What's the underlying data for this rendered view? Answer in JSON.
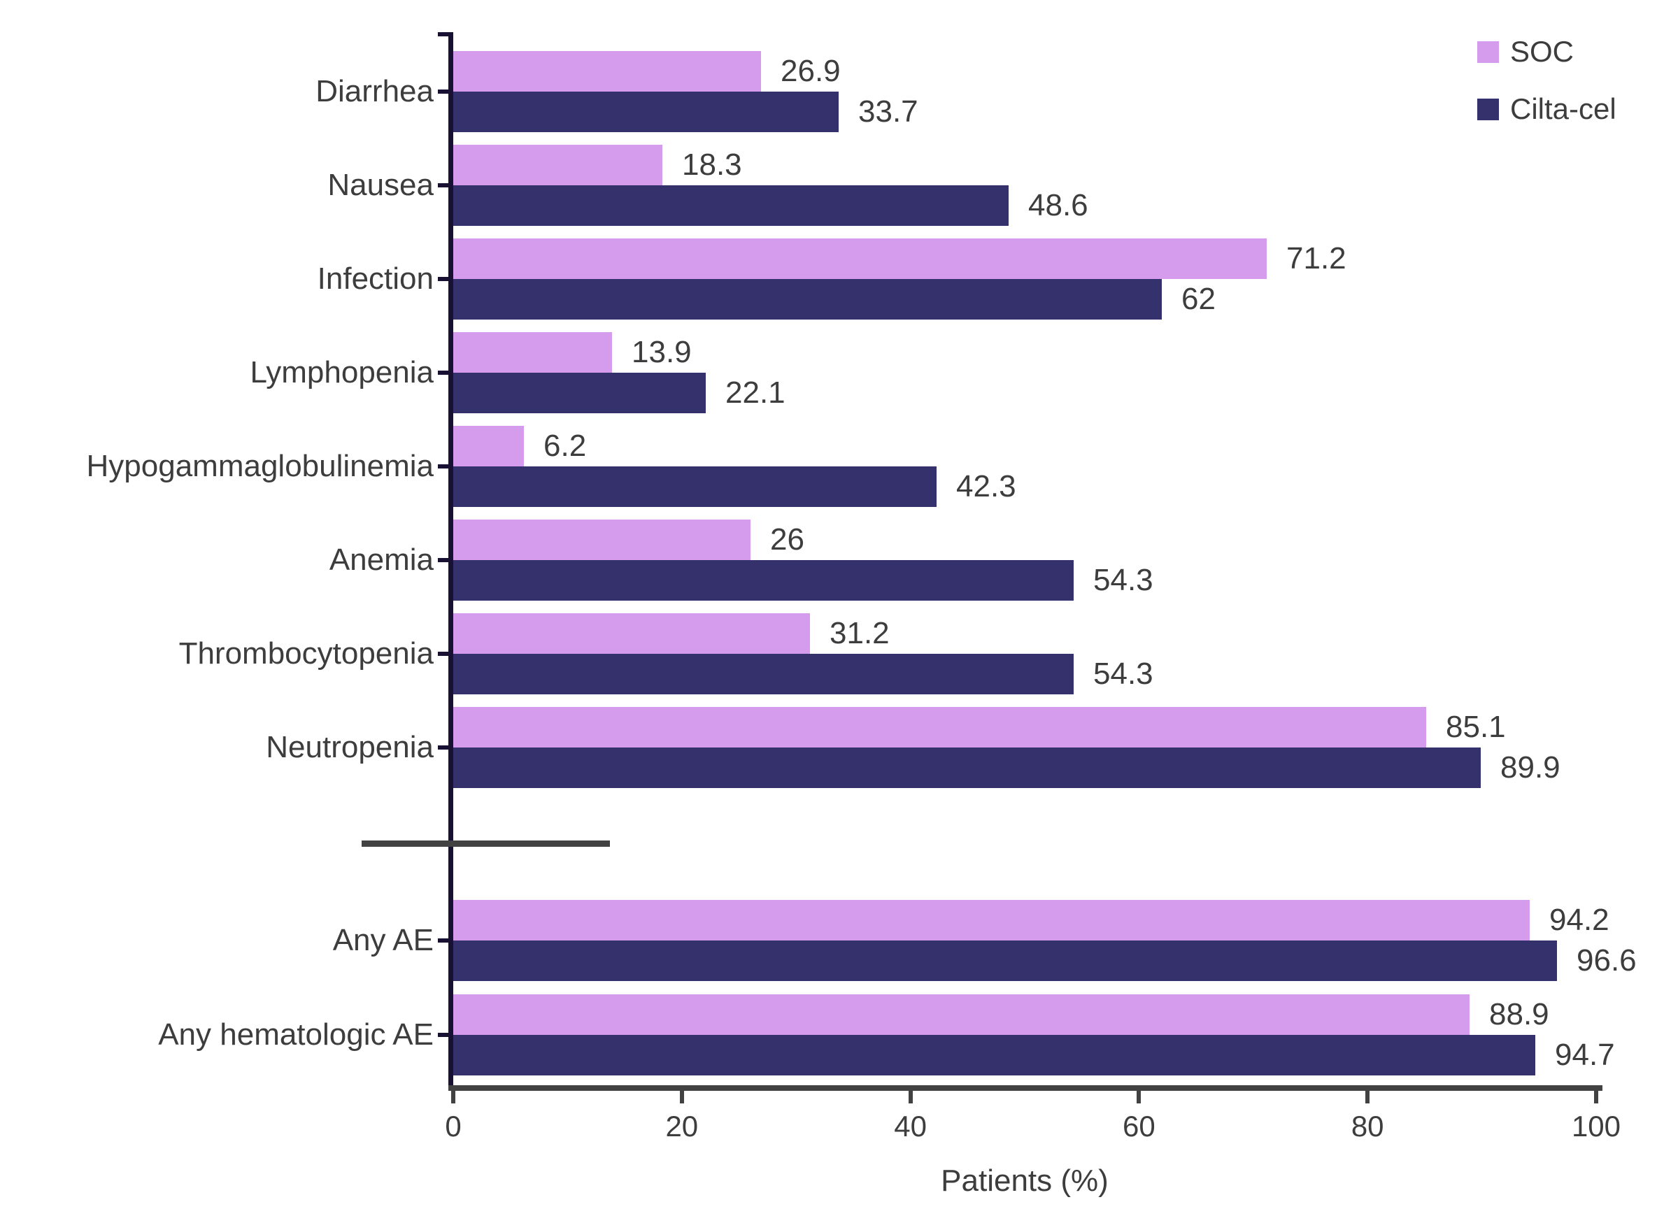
{
  "chart_data": {
    "type": "bar",
    "orientation": "horizontal",
    "title": "",
    "xlabel": "Patients (%)",
    "xlim": [
      0,
      100
    ],
    "xticks": [
      0,
      20,
      40,
      60,
      80,
      100
    ],
    "grid": false,
    "legend_position": "top-right",
    "value_labels": true,
    "categories": [
      "Diarrhea",
      "Nausea",
      "Infection",
      "Lymphopenia",
      "Hypogammaglobulinemia",
      "Anemia",
      "Thrombocytopenia",
      "Neutropenia",
      "Any AE",
      "Any hematologic AE"
    ],
    "break_after_index": 7,
    "series": [
      {
        "name": "SOC",
        "color": "#d59cee",
        "values": [
          26.9,
          18.3,
          71.2,
          13.9,
          6.2,
          26,
          31.2,
          85.1,
          94.2,
          88.9
        ],
        "labels": [
          "26.9",
          "18.3",
          "71.2",
          "13.9",
          "6.2",
          "26",
          "31.2",
          "85.1",
          "94.2",
          "88.9"
        ]
      },
      {
        "name": "Cilta-cel",
        "color": "#35316d",
        "values": [
          33.7,
          48.6,
          62,
          22.1,
          42.3,
          54.3,
          54.3,
          89.9,
          96.6,
          94.7
        ],
        "labels": [
          "33.7",
          "48.6",
          "62",
          "22.1",
          "42.3",
          "54.3",
          "54.3",
          "89.9",
          "96.6",
          "94.7"
        ]
      }
    ]
  },
  "colors": {
    "x_axis": "#424242",
    "y_axis": "#181134",
    "break_line": "#424242",
    "text": "#3d3d3d",
    "background": "#ffffff"
  }
}
